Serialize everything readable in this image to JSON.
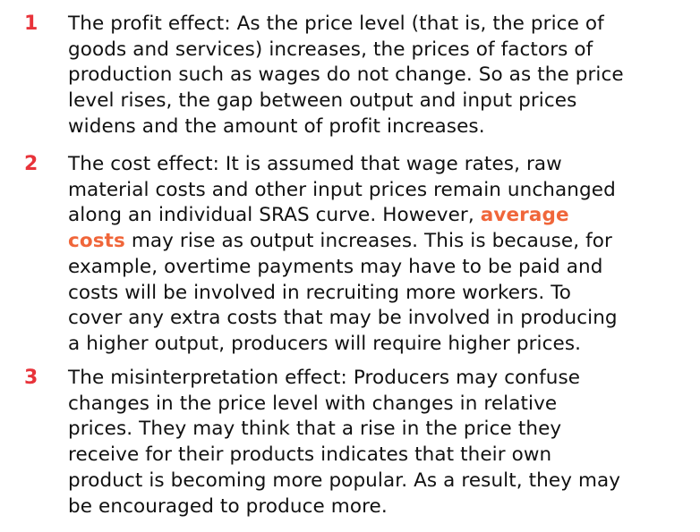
{
  "items": [
    {
      "number": "1",
      "lines": [
        "The profit effect: As the price level (that is, the price of",
        "goods and services) increases, the prices of factors of",
        "production such as wages do not change. So as the price",
        "level rises, the gap between output and input prices",
        "widens and the amount of profit increases."
      ]
    },
    {
      "number": "2",
      "lines": [
        "The cost effect: It is assumed that wage rates, raw",
        "material costs and other input prices remain unchanged",
        "along an individual SRAS curve. However, ",
        "average",
        "costs",
        " may rise as output increases. This is because, for",
        "example, overtime payments may have to be paid and",
        "costs will be involved in recruiting more workers. To",
        "cover any extra costs that may be involved in producing",
        "a higher output, producers will require higher prices."
      ]
    },
    {
      "number": "3",
      "lines": [
        "The misinterpretation effect: Producers may confuse",
        "changes in the price level with changes in relative",
        "prices. They may think that a rise in the price they",
        "receive for their products indicates that their own",
        "product is becoming more popular. As a result, they may",
        "be encouraged to produce more."
      ]
    }
  ],
  "colors": {
    "number": "#e8333a",
    "key_term": "#f0663a",
    "text": "#111111"
  }
}
